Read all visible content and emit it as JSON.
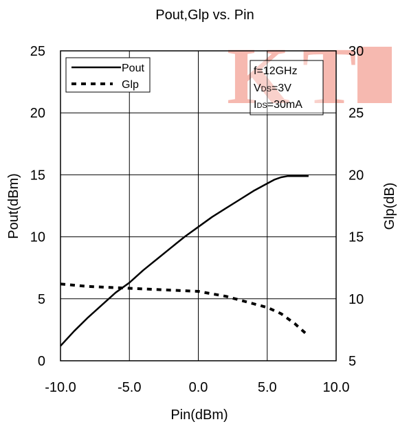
{
  "chart_data": {
    "type": "line",
    "title": "Pout,Glp vs. Pin",
    "xlabel": "Pin(dBm)",
    "ylabel": "Pout(dBm)",
    "y2label": "Glp(dB)",
    "xlim": [
      -10,
      10
    ],
    "ylim": [
      0,
      25
    ],
    "y2lim": [
      5,
      30
    ],
    "xticks": [
      -10,
      -5,
      0,
      5,
      10
    ],
    "xtick_labels": [
      "-10.0",
      "-5.0",
      "0.0",
      "5.0",
      "10.0"
    ],
    "yticks": [
      0,
      5,
      10,
      15,
      20,
      25
    ],
    "ytick_labels": [
      "0",
      "5",
      "10",
      "15",
      "20",
      "25"
    ],
    "y2ticks": [
      5,
      10,
      15,
      20,
      25,
      30
    ],
    "y2tick_labels": [
      "5",
      "10",
      "15",
      "20",
      "25",
      "30"
    ],
    "grid": true,
    "legend_position": "top-left",
    "series": [
      {
        "name": "Pout",
        "axis": "left",
        "style": "solid",
        "color": "#000000",
        "x": [
          -10,
          -9,
          -8,
          -7,
          -6,
          -5,
          -4,
          -3,
          -2,
          -1,
          0,
          1,
          2,
          3,
          4,
          5,
          5.5,
          6,
          6.5,
          7,
          7.5,
          8
        ],
        "y": [
          1.2,
          2.4,
          3.5,
          4.5,
          5.5,
          6.3,
          7.3,
          8.2,
          9.1,
          10.0,
          10.8,
          11.6,
          12.3,
          13.0,
          13.7,
          14.3,
          14.6,
          14.8,
          14.9,
          14.9,
          14.9,
          14.9
        ]
      },
      {
        "name": "Glp",
        "axis": "right",
        "style": "dashed",
        "color": "#000000",
        "x": [
          -10,
          -8,
          -6,
          -4,
          -2,
          0,
          1,
          2,
          3,
          4,
          5,
          6,
          7,
          8
        ],
        "y": [
          11.2,
          11.0,
          10.9,
          10.8,
          10.7,
          10.6,
          10.4,
          10.2,
          9.9,
          9.6,
          9.3,
          8.8,
          8.0,
          7.0
        ]
      }
    ],
    "annotation": {
      "line1": "f=12GHz",
      "line2_main": "V",
      "line2_sub": "DS",
      "line2_rest": "=3V",
      "line3_main": "I",
      "line3_sub": "DS",
      "line3_rest": "=30mA"
    },
    "watermark": {
      "text": "KT",
      "color": "#f08070"
    }
  }
}
